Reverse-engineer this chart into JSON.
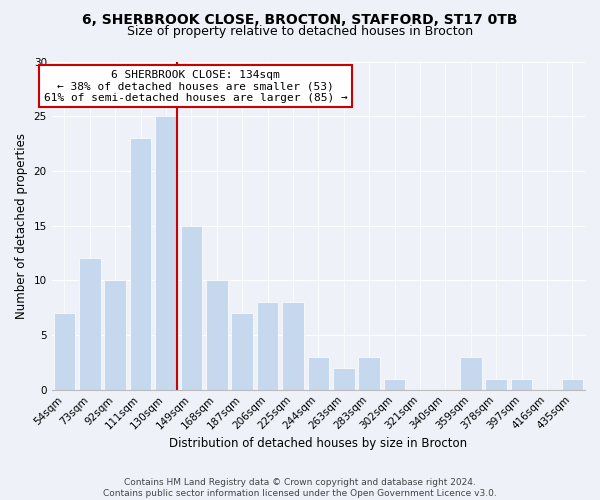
{
  "title": "6, SHERBROOK CLOSE, BROCTON, STAFFORD, ST17 0TB",
  "subtitle": "Size of property relative to detached houses in Brocton",
  "xlabel": "Distribution of detached houses by size in Brocton",
  "ylabel": "Number of detached properties",
  "bar_labels": [
    "54sqm",
    "73sqm",
    "92sqm",
    "111sqm",
    "130sqm",
    "149sqm",
    "168sqm",
    "187sqm",
    "206sqm",
    "225sqm",
    "244sqm",
    "263sqm",
    "283sqm",
    "302sqm",
    "321sqm",
    "340sqm",
    "359sqm",
    "378sqm",
    "397sqm",
    "416sqm",
    "435sqm"
  ],
  "bar_values": [
    7,
    12,
    10,
    23,
    25,
    15,
    10,
    7,
    8,
    8,
    3,
    2,
    3,
    1,
    0,
    0,
    3,
    1,
    1,
    0,
    1
  ],
  "bar_color": "#c5d8ed",
  "vline_color": "#cc0000",
  "vline_index": 4,
  "annotation_text": "6 SHERBROOK CLOSE: 134sqm\n← 38% of detached houses are smaller (53)\n61% of semi-detached houses are larger (85) →",
  "annotation_box_edgecolor": "#cc0000",
  "annotation_box_facecolor": "#ffffff",
  "ylim": [
    0,
    30
  ],
  "yticks": [
    0,
    5,
    10,
    15,
    20,
    25,
    30
  ],
  "footer_line1": "Contains HM Land Registry data © Crown copyright and database right 2024.",
  "footer_line2": "Contains public sector information licensed under the Open Government Licence v3.0.",
  "title_fontsize": 10,
  "subtitle_fontsize": 9,
  "xlabel_fontsize": 8.5,
  "ylabel_fontsize": 8.5,
  "tick_fontsize": 7.5,
  "annot_fontsize": 8,
  "footer_fontsize": 6.5,
  "bg_color": "#eef2f8"
}
